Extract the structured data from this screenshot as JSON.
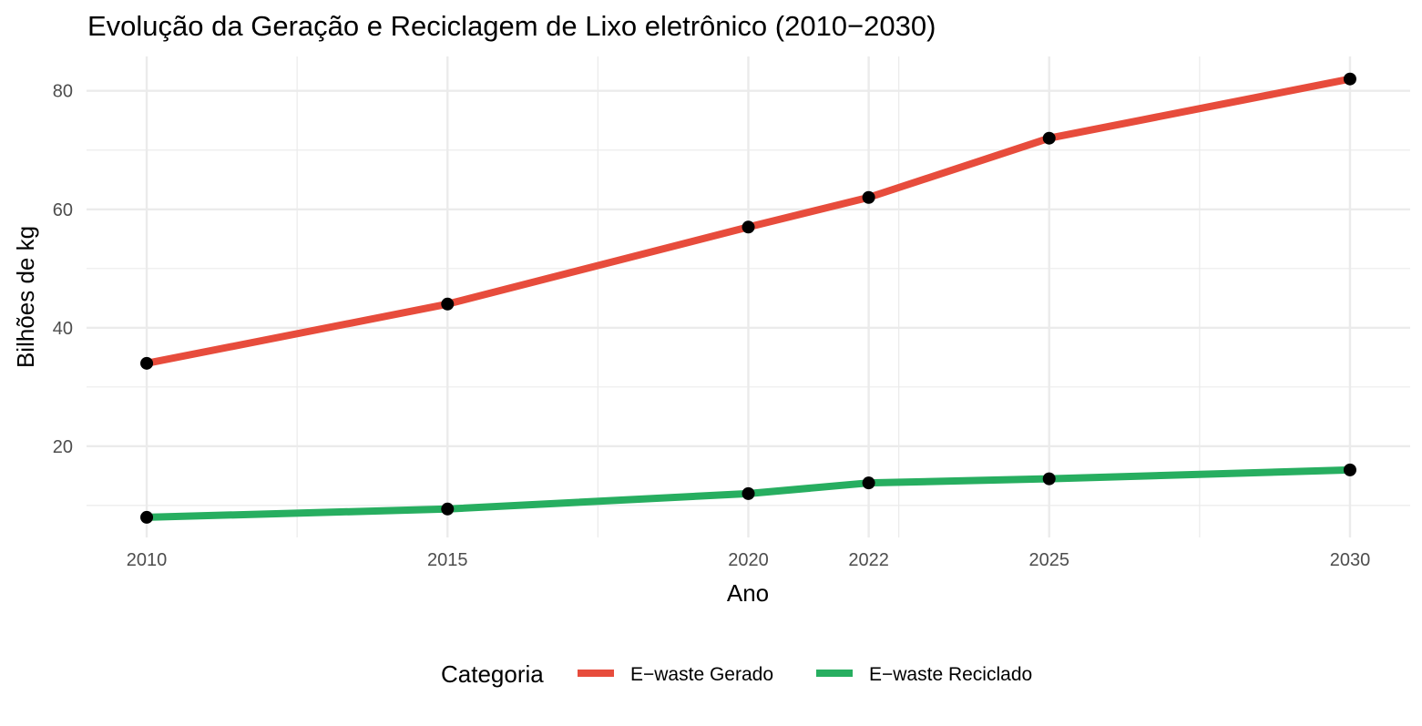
{
  "chart_data": {
    "type": "line",
    "title": "Evolução da Geração e Reciclagem de Lixo eletrônico (2010−2030)",
    "xlabel": "Ano",
    "ylabel": "Bilhões de kg",
    "x": [
      2010,
      2015,
      2020,
      2022,
      2025,
      2030
    ],
    "xticks": [
      "2010",
      "2015",
      "2020",
      "2022",
      "2025",
      "2030"
    ],
    "yticks": [
      "20",
      "40",
      "60",
      "80"
    ],
    "ylim": [
      4.6,
      85.8
    ],
    "xlim": [
      2009,
      2031
    ],
    "grid": true,
    "legend_title": "Categoria",
    "legend_position": "bottom",
    "series": [
      {
        "name": "E−waste Gerado",
        "color": "#E74C3C",
        "values": [
          34,
          44,
          57,
          62,
          72,
          82
        ]
      },
      {
        "name": "E−waste Reciclado",
        "color": "#27AE60",
        "values": [
          8,
          9.4,
          12,
          13.8,
          14.5,
          16
        ]
      }
    ],
    "point_color": "#000000"
  }
}
